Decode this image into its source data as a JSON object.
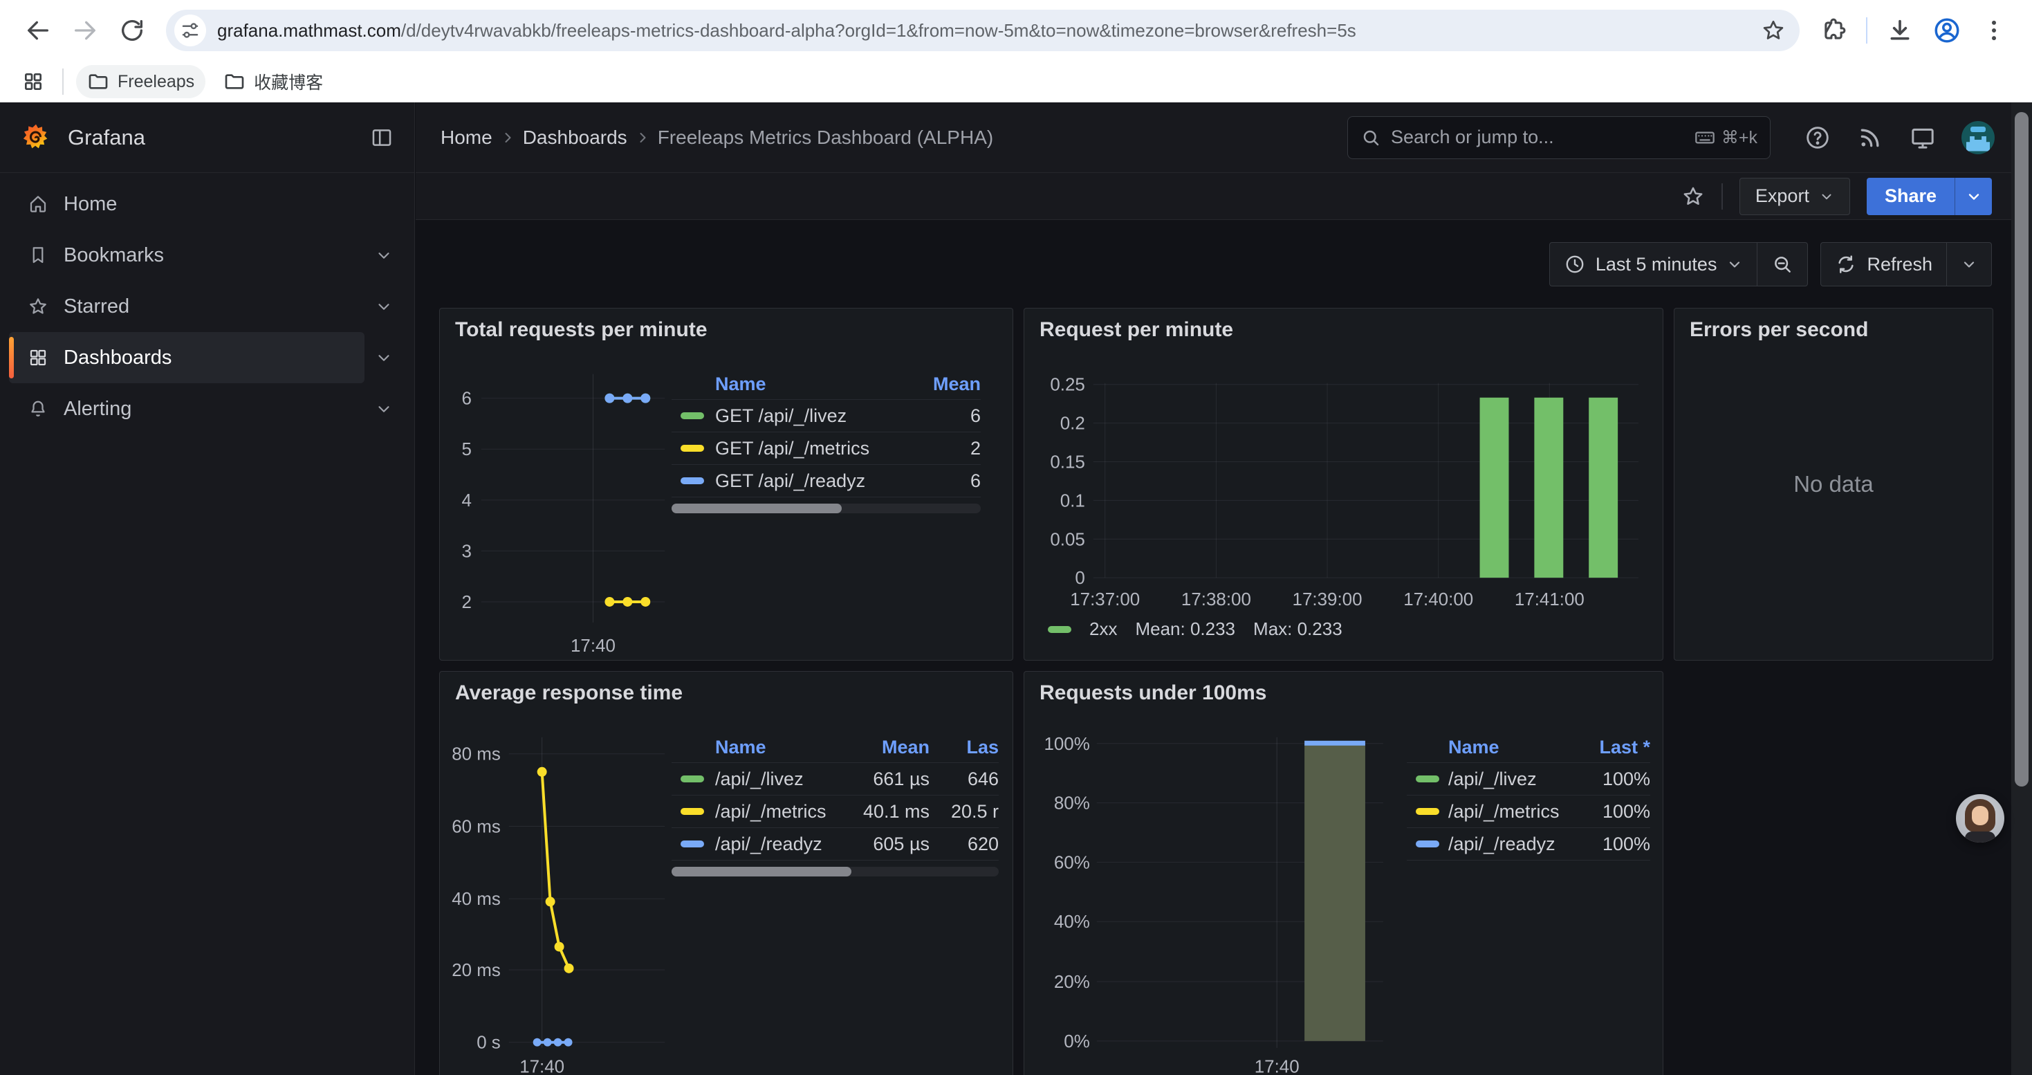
{
  "browser": {
    "url_domain": "grafana.mathmast.com",
    "url_rest": "/d/deytv4rwavabkb/freeleaps-metrics-dashboard-alpha?orgId=1&from=now-5m&to=now&timezone=browser&refresh=5s",
    "bookmarks": {
      "folder1": "Freeleaps",
      "folder2": "收藏博客"
    }
  },
  "nav": {
    "brand": "Grafana",
    "breadcrumbs": {
      "home": "Home",
      "section": "Dashboards",
      "current": "Freeleaps Metrics Dashboard (ALPHA)"
    },
    "search": {
      "placeholder": "Search or jump to...",
      "shortcut": "⌘+k"
    }
  },
  "sidebar": {
    "home": "Home",
    "bookmarks": "Bookmarks",
    "starred": "Starred",
    "dashboards": "Dashboards",
    "alerting": "Alerting"
  },
  "actions": {
    "export": "Export",
    "share": "Share",
    "time_range": "Last 5 minutes",
    "refresh": "Refresh"
  },
  "colors": {
    "share_blue": "#3d71d9",
    "link_blue": "#6e9fff",
    "series_green": "#73bf69",
    "series_yellow": "#fade2a",
    "series_blue": "#79aaf7"
  },
  "panels": {
    "total_requests": {
      "title": "Total requests per minute",
      "type": "line",
      "legend_headers": {
        "name": "Name",
        "mean": "Mean"
      },
      "y_ticks": [
        6,
        5,
        4,
        3,
        2
      ],
      "x_ticks": [
        "17:40"
      ],
      "series": [
        {
          "name": "GET /api/_/livez",
          "color": "#73bf69",
          "mean": "6",
          "values": [
            6,
            6,
            6
          ]
        },
        {
          "name": "GET /api/_/metrics",
          "color": "#fade2a",
          "mean": "2",
          "values": [
            2,
            2,
            2
          ]
        },
        {
          "name": "GET /api/_/readyz",
          "color": "#79aaf7",
          "mean": "6",
          "values": [
            6,
            6,
            6
          ]
        }
      ]
    },
    "requests_per_minute": {
      "title": "Request per minute",
      "type": "bar",
      "y_ticks": [
        "0.25",
        "0.2",
        "0.15",
        "0.1",
        "0.05",
        "0"
      ],
      "y_max": 0.25,
      "x_ticks": [
        "17:37:00",
        "17:38:00",
        "17:39:00",
        "17:40:00",
        "17:41:00"
      ],
      "series": [
        {
          "name": "2xx",
          "color": "#73bf69",
          "values": [
            0.233,
            0.233,
            0.233
          ],
          "mean_label": "Mean: 0.233",
          "max_label": "Max: 0.233"
        }
      ]
    },
    "errors_per_second": {
      "title": "Errors per second",
      "message": "No data"
    },
    "avg_response": {
      "title": "Average response time",
      "type": "line",
      "legend_headers": {
        "name": "Name",
        "mean": "Mean",
        "last": "Las"
      },
      "y_ticks": [
        "80 ms",
        "60 ms",
        "40 ms",
        "20 ms",
        "0 s"
      ],
      "y_max_ms": 80,
      "x_ticks": [
        "17:40"
      ],
      "series": [
        {
          "name": "/api/_/livez",
          "color": "#73bf69",
          "mean": "661 µs",
          "last": "646",
          "values_ms": [
            0,
            0,
            0,
            0
          ]
        },
        {
          "name": "/api/_/metrics",
          "color": "#fade2a",
          "mean": "40.1 ms",
          "last": "20.5 r",
          "values_ms": [
            75,
            39,
            26.5,
            20.5
          ]
        },
        {
          "name": "/api/_/readyz",
          "color": "#79aaf7",
          "mean": "605 µs",
          "last": "620",
          "values_ms": [
            0,
            0,
            0,
            0
          ]
        }
      ]
    },
    "under_100ms": {
      "title": "Requests under 100ms",
      "type": "bar",
      "legend_headers": {
        "name": "Name",
        "last": "Last *"
      },
      "y_ticks": [
        "100%",
        "80%",
        "60%",
        "40%",
        "20%",
        "0%"
      ],
      "x_ticks": [
        "17:40"
      ],
      "bar_value_pct": 100,
      "series": [
        {
          "name": "/api/_/livez",
          "color": "#73bf69",
          "last": "100%"
        },
        {
          "name": "/api/_/metrics",
          "color": "#fade2a",
          "last": "100%"
        },
        {
          "name": "/api/_/readyz",
          "color": "#79aaf7",
          "last": "100%"
        }
      ]
    }
  }
}
